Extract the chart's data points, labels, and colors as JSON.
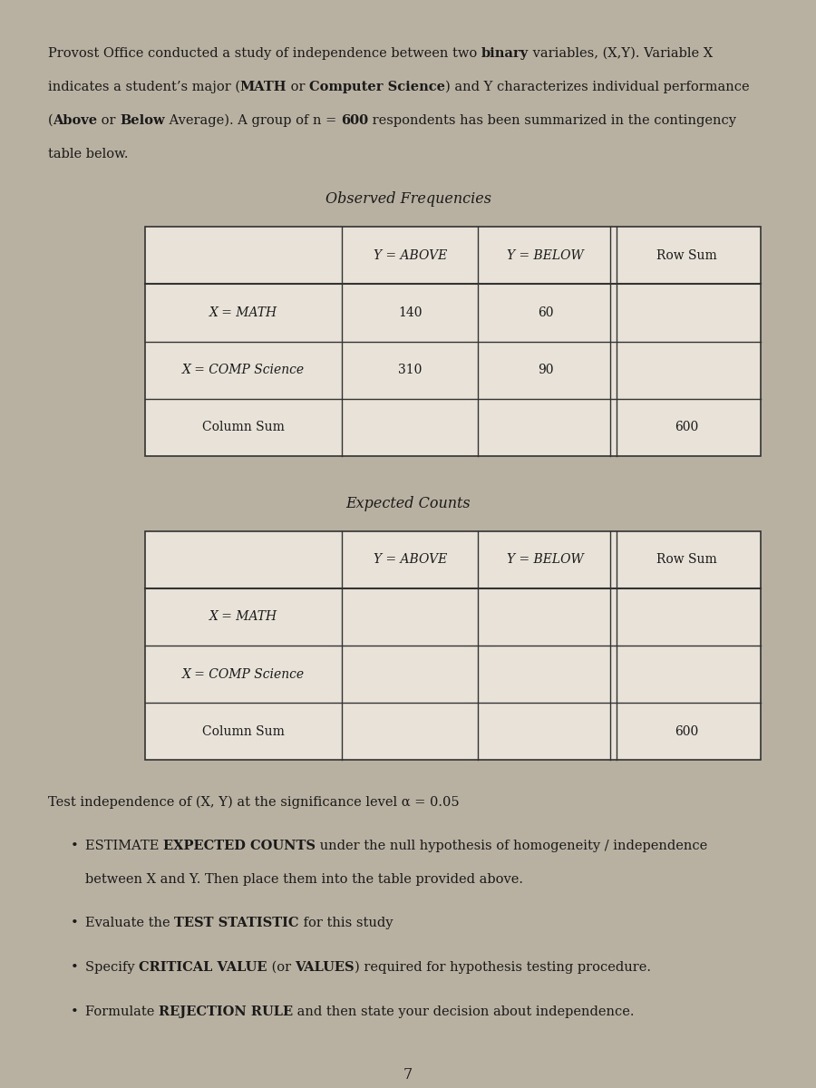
{
  "bg_top_color": "#b8b0a0",
  "bg_bottom_color": "#1a1410",
  "paper_color": "#ddd8cc",
  "text_color": "#1a1a1a",
  "table_line_color": "#333333",
  "table_bg": "#e8e2d8",
  "observed_title": "Observed Frequencies",
  "expected_title": "Expected Counts",
  "para_line1": "Provost Office conducted a study of independence between two ",
  "para_line1_bold": "binary",
  "para_line1_rest": " variables, (X,Y). Variable X",
  "para_line2": "indicates a student’s major (",
  "para_line2_bold1": "MATH",
  "para_line2_mid": " or ",
  "para_line2_bold2": "Computer Science",
  "para_line2_rest": ") and Y characterizes individual performance",
  "para_line3": "(",
  "para_line3_bold1": "Above",
  "para_line3_mid": " or ",
  "para_line3_bold2": "Below",
  "para_line3_rest": " Average). A group of n = ",
  "para_line3_bold3": "600",
  "para_line3_end": " respondents has been summarized in the contingency",
  "para_line4": "table below.",
  "col_headers": [
    "Y = ABOVE",
    "Y = BELOW",
    "Row Sum"
  ],
  "obs_rows": [
    [
      "X = MATH",
      "140",
      "60",
      ""
    ],
    [
      "X = COMP Science",
      "310",
      "90",
      ""
    ],
    [
      "Column Sum",
      "",
      "",
      "600"
    ]
  ],
  "exp_rows": [
    [
      "X = MATH",
      "",
      "",
      ""
    ],
    [
      "X = COMP Science",
      "",
      "",
      ""
    ],
    [
      "Column Sum",
      "",
      "",
      "600"
    ]
  ],
  "test_line": "Test independence of (X, Y) at the significance level α = 0.05",
  "b1_normal1": "ESTIMATE ",
  "b1_bold": "EXPECTED COUNTS",
  "b1_normal2": " under the null hypothesis of homogeneity / independence",
  "b1_line2": "between X and Y. Then place them into the table provided above.",
  "b2_normal1": "Evaluate the ",
  "b2_bold": "TEST STATISTIC",
  "b2_normal2": " for this study",
  "b3_normal1": "Specify ",
  "b3_bold1": "CRITICAL VALUE",
  "b3_normal2": " (or ",
  "b3_bold2": "VALUES",
  "b3_normal3": ") required for hypothesis testing procedure.",
  "b4_normal1": "Formulate ",
  "b4_bold": "REJECTION RULE",
  "b4_normal2": " and then state your decision about independence.",
  "page_number": "7"
}
